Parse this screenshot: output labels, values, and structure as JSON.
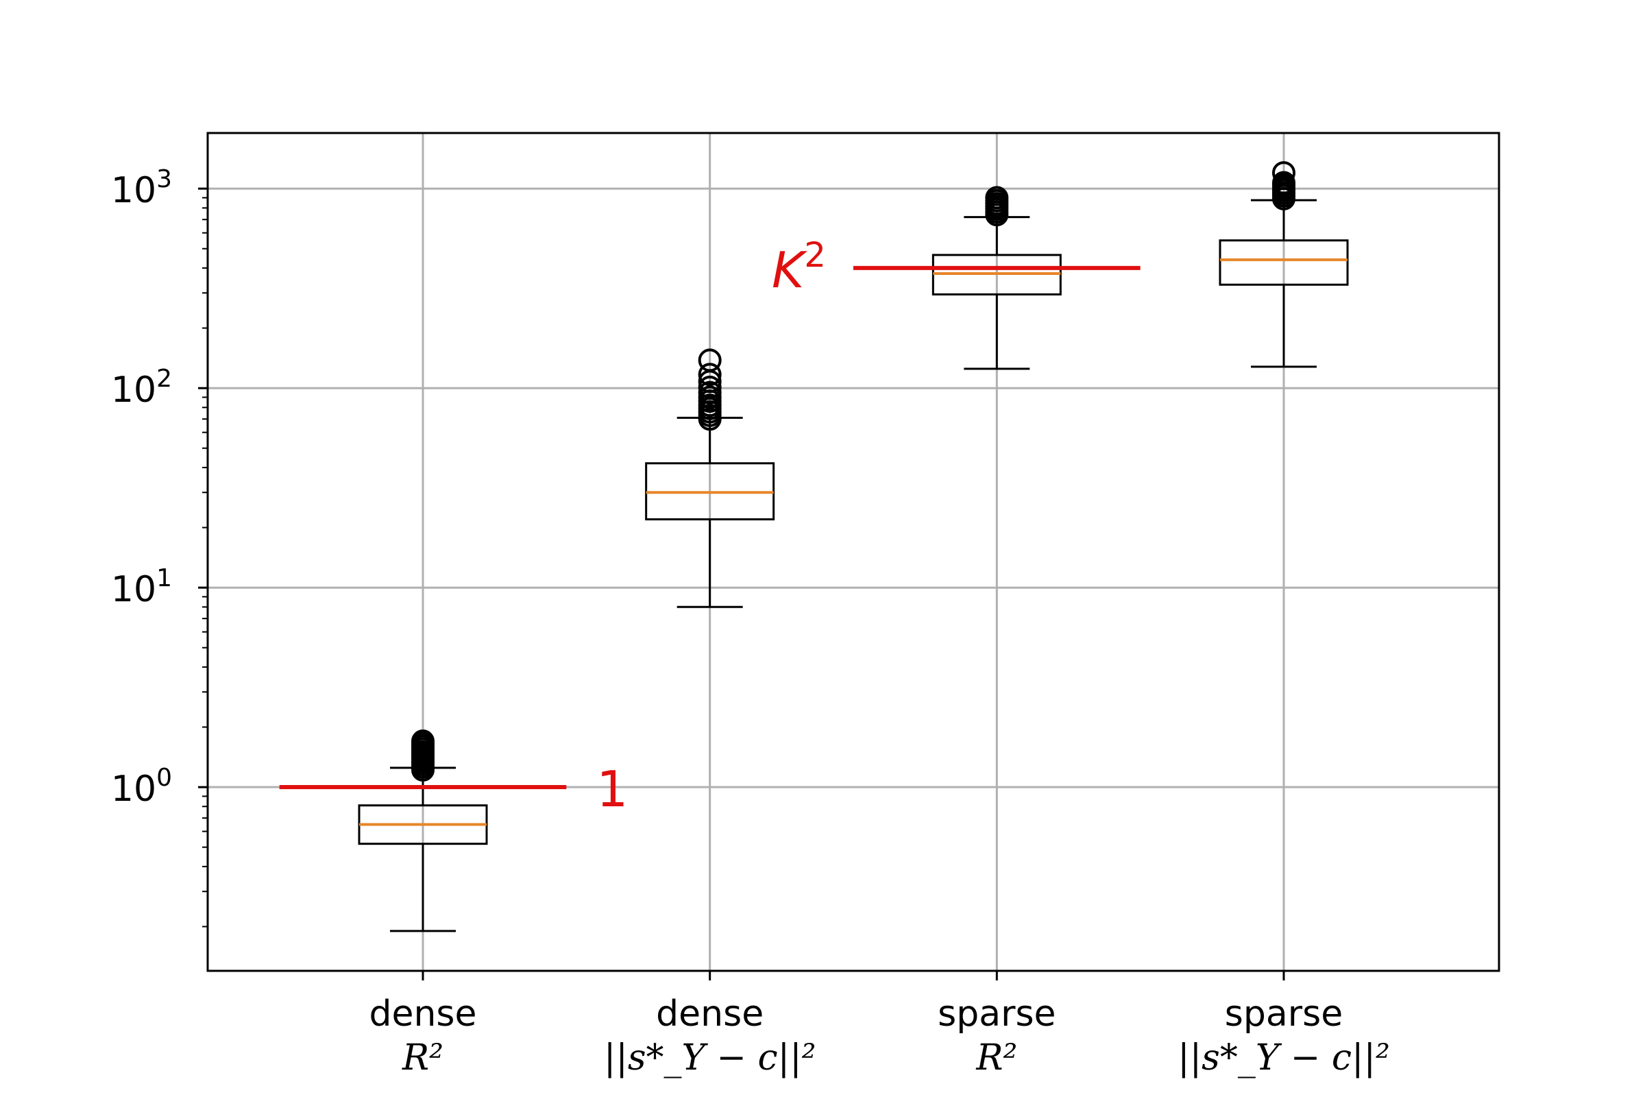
{
  "chart_data": {
    "type": "box",
    "yscale": "log",
    "ylim": [
      0.12,
      1900
    ],
    "grid": true,
    "xlim": [
      0.25,
      4.75
    ],
    "y_ticks": [
      {
        "value": 1,
        "base": "10",
        "exp": "0"
      },
      {
        "value": 10,
        "base": "10",
        "exp": "1"
      },
      {
        "value": 100,
        "base": "10",
        "exp": "2"
      },
      {
        "value": 1000,
        "base": "10",
        "exp": "3"
      }
    ],
    "categories": [
      {
        "line1": "dense",
        "line2": "R²"
      },
      {
        "line1": "dense",
        "line2": "||s*_Y − c||²"
      },
      {
        "line1": "sparse",
        "line2": "R²"
      },
      {
        "line1": "sparse",
        "line2": "||s*_Y − c||²"
      }
    ],
    "boxes": [
      {
        "whisker_low": 0.19,
        "q1": 0.52,
        "median": 0.65,
        "q3": 0.81,
        "whisker_high": 1.25,
        "outliers": [
          1.22,
          1.26,
          1.3,
          1.34,
          1.38,
          1.42,
          1.46,
          1.5,
          1.55,
          1.6,
          1.65,
          1.7
        ]
      },
      {
        "whisker_low": 8,
        "q1": 22,
        "median": 30,
        "q3": 42,
        "whisker_high": 71,
        "outliers": [
          70,
          73,
          76,
          79,
          82,
          86,
          90,
          95,
          101,
          108,
          117,
          138
        ]
      },
      {
        "whisker_low": 125,
        "q1": 295,
        "median": 375,
        "q3": 465,
        "whisker_high": 720,
        "outliers": [
          740,
          765,
          790,
          815,
          840,
          870,
          900
        ]
      },
      {
        "whisker_low": 128,
        "q1": 330,
        "median": 440,
        "q3": 550,
        "whisker_high": 875,
        "outliers": [
          890,
          920,
          950,
          980,
          1010,
          1040,
          1070,
          1200
        ]
      }
    ],
    "reference_lines": [
      {
        "label": "1",
        "value": 1,
        "x_from": 0.5,
        "x_to": 1.5,
        "label_side": "right"
      },
      {
        "label": "K²",
        "value": 400,
        "x_from": 2.5,
        "x_to": 3.5,
        "label_side": "left"
      }
    ],
    "colors": {
      "box": "#000000",
      "median": "#e6862a",
      "grid": "#b0b0b0",
      "reference": "#e01010"
    }
  }
}
